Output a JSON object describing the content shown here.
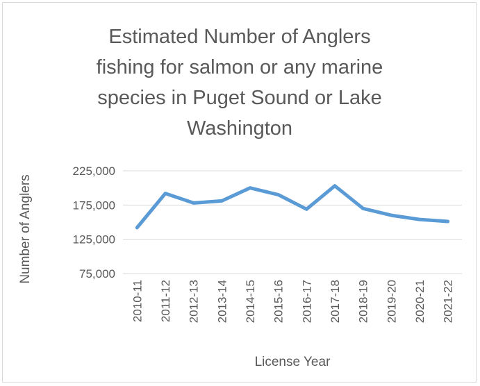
{
  "chart_data": {
    "type": "line",
    "title_lines": [
      "Estimated Number of Anglers",
      "fishing for salmon or any marine",
      "species in Puget Sound or Lake",
      "Washington"
    ],
    "xlabel": "License Year",
    "ylabel": "Number of Anglers",
    "categories": [
      "2010-11",
      "2011-12",
      "2012-13",
      "2013-14",
      "2014-15",
      "2015-16",
      "2016-17",
      "2017-18",
      "2018-19",
      "2019-20",
      "2020-21",
      "2021-22"
    ],
    "series": [
      {
        "values": [
          142000,
          192000,
          178000,
          181000,
          200000,
          190000,
          169000,
          203000,
          170000,
          160000,
          154000,
          151000
        ],
        "color": "#5b9bd5"
      }
    ],
    "ylim": [
      75000,
      225000
    ],
    "yticks": [
      75000,
      125000,
      175000,
      225000
    ],
    "ytick_labels": [
      "75,000",
      "125,000",
      "175,000",
      "225,000"
    ],
    "grid": true,
    "legend": "none"
  }
}
